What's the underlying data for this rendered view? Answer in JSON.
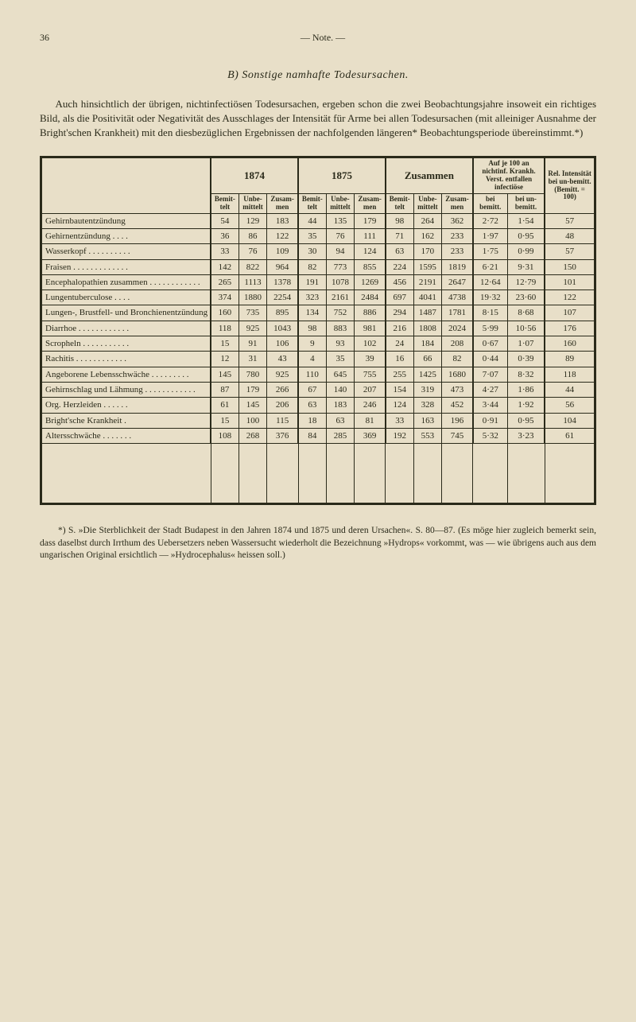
{
  "header": {
    "page_number": "36",
    "running_head": "— Note. —"
  },
  "section_title": "B) Sonstige namhafte Todesursachen.",
  "intro_text": "Auch hinsichtlich der übrigen, nichtinfectiösen Todesursachen, ergeben schon die zwei Beobachtungsjahre insoweit ein richtiges Bild, als die Positivität oder Negativität des Ausschlages der Intensität für Arme bei allen Todesursachen (mit alleiniger Ausnahme der Bright'schen Krankheit) mit den diesbezüglichen Ergebnissen der nachfolgenden längeren* Beobachtungsperiode übereinstimmt.*)",
  "table": {
    "year1": "1874",
    "year2": "1875",
    "zusammen": "Zusammen",
    "aufje": "Auf je 100 an nichtinf. Krankh. Verst. entfallen infectiöse",
    "rel": "Rel. Intensität bei un-bemitt. (Bemitt. = 100)",
    "sub_bemit": "Bemit-telt",
    "sub_unbe": "Unbe-mittelt",
    "sub_zusam": "Zusam-men",
    "sub_bei_bemitt": "bei bemitt.",
    "sub_bei_un": "bei un-bemitt.",
    "rows": [
      {
        "label": "Gehirnbautentzündung",
        "c": [
          "54",
          "129",
          "183",
          "44",
          "135",
          "179",
          "98",
          "264",
          "362",
          "2·72",
          "1·54",
          "57"
        ]
      },
      {
        "label": "Gehirnentzündung . . . .",
        "c": [
          "36",
          "86",
          "122",
          "35",
          "76",
          "111",
          "71",
          "162",
          "233",
          "1·97",
          "0·95",
          "48"
        ]
      },
      {
        "label": "Wasserkopf . . . . . . . . . .",
        "c": [
          "33",
          "76",
          "109",
          "30",
          "94",
          "124",
          "63",
          "170",
          "233",
          "1·75",
          "0·99",
          "57"
        ]
      },
      {
        "label": "Fraisen . . . . . . . . . . . . .",
        "c": [
          "142",
          "822",
          "964",
          "82",
          "773",
          "855",
          "224",
          "1595",
          "1819",
          "6·21",
          "9·31",
          "150"
        ]
      },
      {
        "label": "Encephalopathien zusammen . . . . . . . . . . . .",
        "summary": true,
        "c": [
          "265",
          "1113",
          "1378",
          "191",
          "1078",
          "1269",
          "456",
          "2191",
          "2647",
          "12·64",
          "12·79",
          "101"
        ]
      },
      {
        "label": "Lungentuberculose . . . .",
        "c": [
          "374",
          "1880",
          "2254",
          "323",
          "2161",
          "2484",
          "697",
          "4041",
          "4738",
          "19·32",
          "23·60",
          "122"
        ]
      },
      {
        "label": "Lungen-, Brustfell- und Bronchienentzündung",
        "c": [
          "160",
          "735",
          "895",
          "134",
          "752",
          "886",
          "294",
          "1487",
          "1781",
          "8·15",
          "8·68",
          "107"
        ]
      },
      {
        "label": "Diarrhoe . . . . . . . . . . . .",
        "c": [
          "118",
          "925",
          "1043",
          "98",
          "883",
          "981",
          "216",
          "1808",
          "2024",
          "5·99",
          "10·56",
          "176"
        ]
      },
      {
        "label": "Scropheln . . . . . . . . . . .",
        "c": [
          "15",
          "91",
          "106",
          "9",
          "93",
          "102",
          "24",
          "184",
          "208",
          "0·67",
          "1·07",
          "160"
        ]
      },
      {
        "label": "Rachitis . . . . . . . . . . . .",
        "c": [
          "12",
          "31",
          "43",
          "4",
          "35",
          "39",
          "16",
          "66",
          "82",
          "0·44",
          "0·39",
          "89"
        ]
      },
      {
        "label": "Angeborene Lebensschwäche . . . . . . . . .",
        "c": [
          "145",
          "780",
          "925",
          "110",
          "645",
          "755",
          "255",
          "1425",
          "1680",
          "7·07",
          "8·32",
          "118"
        ]
      },
      {
        "label": "Gehirnschlag und Lähmung . . . . . . . . . . . .",
        "c": [
          "87",
          "179",
          "266",
          "67",
          "140",
          "207",
          "154",
          "319",
          "473",
          "4·27",
          "1·86",
          "44"
        ]
      },
      {
        "label": "Org. Herzleiden . . . . . .",
        "c": [
          "61",
          "145",
          "206",
          "63",
          "183",
          "246",
          "124",
          "328",
          "452",
          "3·44",
          "1·92",
          "56"
        ]
      },
      {
        "label": "Bright'sche Krankheit .",
        "c": [
          "15",
          "100",
          "115",
          "18",
          "63",
          "81",
          "33",
          "163",
          "196",
          "0·91",
          "0·95",
          "104"
        ]
      },
      {
        "label": "Altersschwäche . . . . . . .",
        "c": [
          "108",
          "268",
          "376",
          "84",
          "285",
          "369",
          "192",
          "553",
          "745",
          "5·32",
          "3·23",
          "61"
        ]
      }
    ]
  },
  "footnote": "*) S. »Die Sterblichkeit der Stadt Budapest in den Jahren 1874 und 1875 und deren Ursachen«. S. 80—87. (Es möge hier zugleich bemerkt sein, dass daselbst durch Irrthum des Uebersetzers neben Wassersucht wiederholt die Bezeichnung »Hydrops« vorkommt, was — wie übrigens auch aus dem ungarischen Original ersichtlich — »Hydrocephalus« heissen soll.)"
}
